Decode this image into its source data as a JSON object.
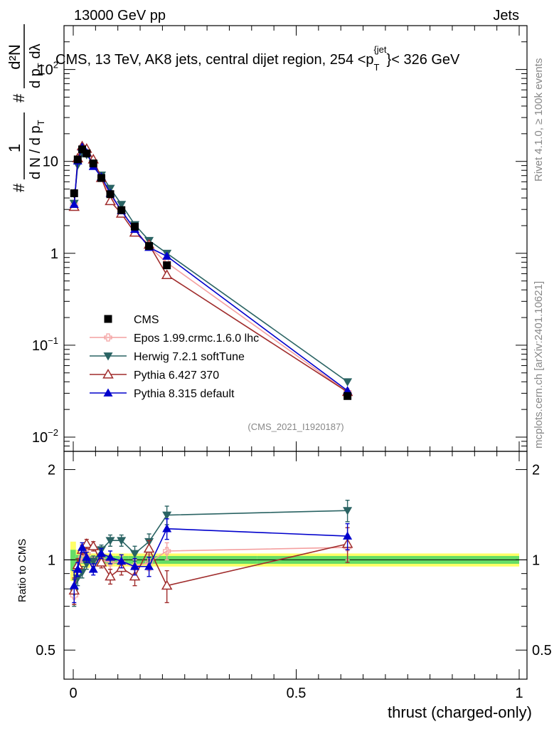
{
  "header": {
    "left": "13000 GeV pp",
    "right": "Jets"
  },
  "side_labels": {
    "rivet": "Rivet 4.1.0, ≥ 100k events",
    "mcplots": "mcplots.cern.ch [arXiv:2401.10621]"
  },
  "chart_data": {
    "type": "line",
    "title": "CMS, 13 TeV, AK8 jets, central dijet region, 254 <p_T^{jet}< 326 GeV",
    "title_parts": {
      "pre": "CMS, 13 TeV, AK8 jets, central dijet region, 254 <p",
      "sub": "T",
      "sup": "{jet",
      "post": "}< 326 GeV"
    },
    "analysis_id": "(CMS_2021_I1920187)",
    "xlabel": "thrust (charged-only)",
    "ylabel_main": {
      "frac_num": "1",
      "frac_den": "d N / d p",
      "frac_den_sub": "T",
      "frac_prefix": "#",
      "d2n_num": "d²N",
      "d2n_den": "d p",
      "d2n_den_sub": "T",
      "d2n_den_post": " dλ",
      "d2n_prefix": "#"
    },
    "ylabel_ratio": "Ratio to CMS",
    "xlim": [
      0,
      1
    ],
    "ylim_main": [
      0.007,
      300
    ],
    "ylim_ratio": [
      0.4,
      2.3
    ],
    "x_ticks": [
      {
        "value": 0,
        "label": "0"
      },
      {
        "value": 0.5,
        "label": "0.5"
      },
      {
        "value": 1,
        "label": "1"
      }
    ],
    "y_ticks_main": [
      {
        "value": 0.01,
        "base": "10",
        "exp": "−2"
      },
      {
        "value": 0.1,
        "base": "10",
        "exp": "−1"
      },
      {
        "value": 1,
        "base": "1",
        "exp": ""
      },
      {
        "value": 10,
        "base": "10",
        "exp": ""
      },
      {
        "value": 100,
        "base": "10",
        "exp": "2"
      }
    ],
    "y_ticks_ratio": [
      {
        "value": 0.5,
        "label": "0.5"
      },
      {
        "value": 1,
        "label": "1"
      },
      {
        "value": 2,
        "label": "2"
      }
    ],
    "x": [
      0.002,
      0.01,
      0.02,
      0.03,
      0.045,
      0.063,
      0.083,
      0.108,
      0.138,
      0.17,
      0.21,
      0.615
    ],
    "series": [
      {
        "name": "CMS",
        "color": "#000000",
        "marker": "square",
        "line": false,
        "values": [
          4.5,
          10.5,
          13.5,
          12.2,
          9.5,
          6.6,
          4.4,
          2.95,
          1.95,
          1.2,
          0.74,
          0.028
        ],
        "ratio": [
          1,
          1,
          1,
          1,
          1,
          1,
          1,
          1,
          1,
          1,
          1,
          1
        ],
        "ratio_err": [
          0,
          0,
          0,
          0,
          0,
          0,
          0,
          0,
          0,
          0,
          0,
          0
        ]
      },
      {
        "name": "Epos 1.99.crmc.1.6.0 lhc",
        "color": "#f4a0a0",
        "marker": "cross-open",
        "line": true,
        "values": [
          3.4,
          9.8,
          13.8,
          12.8,
          9.3,
          6.6,
          4.3,
          2.9,
          1.85,
          1.18,
          0.79,
          0.031
        ],
        "ratio": [
          0.76,
          0.93,
          1.02,
          1.05,
          0.98,
          1.0,
          0.98,
          0.98,
          0.95,
          0.98,
          1.07,
          1.1
        ],
        "ratio_err": [
          0.05,
          0.05,
          0.04,
          0.04,
          0.04,
          0.04,
          0.05,
          0.05,
          0.05,
          0.06,
          0.07,
          0.1
        ]
      },
      {
        "name": "Herwig 7.2.1 softTune",
        "color": "#2a6363",
        "marker": "triangle-down",
        "line": true,
        "values": [
          3.5,
          9.1,
          12.3,
          11.8,
          9.4,
          7.1,
          5.1,
          3.4,
          2.05,
          1.38,
          1.0,
          0.04
        ],
        "ratio": [
          0.78,
          0.87,
          0.91,
          0.97,
          0.99,
          1.08,
          1.16,
          1.16,
          1.05,
          1.15,
          1.41,
          1.46
        ],
        "ratio_err": [
          0.08,
          0.05,
          0.04,
          0.04,
          0.04,
          0.04,
          0.05,
          0.05,
          0.06,
          0.07,
          0.1,
          0.12
        ]
      },
      {
        "name": "Pythia 6.427 370",
        "color": "#a02c2c",
        "marker": "triangle-up-open",
        "line": true,
        "values": [
          3.2,
          10.8,
          14.6,
          13.7,
          10.5,
          6.6,
          3.7,
          2.7,
          1.68,
          1.24,
          0.58,
          0.031
        ],
        "ratio": [
          0.79,
          0.96,
          1.08,
          1.13,
          1.11,
          0.98,
          0.88,
          0.94,
          0.88,
          1.09,
          0.82,
          1.13
        ],
        "ratio_err": [
          0.08,
          0.05,
          0.04,
          0.04,
          0.04,
          0.04,
          0.05,
          0.05,
          0.06,
          0.07,
          0.1,
          0.15
        ]
      },
      {
        "name": "Pythia 8.315 default",
        "color": "#0000cc",
        "marker": "triangle-up",
        "line": true,
        "values": [
          3.4,
          10.1,
          14.3,
          12.5,
          8.8,
          6.8,
          4.5,
          2.9,
          1.82,
          1.16,
          0.93,
          0.032
        ],
        "ratio": [
          0.82,
          0.93,
          1.1,
          1.02,
          0.93,
          1.05,
          1.02,
          0.99,
          0.95,
          0.95,
          1.27,
          1.2
        ],
        "ratio_err": [
          0.1,
          0.05,
          0.04,
          0.04,
          0.04,
          0.04,
          0.05,
          0.05,
          0.06,
          0.07,
          0.1,
          0.12
        ]
      }
    ],
    "cms_err_main": [
      0.5,
      0.6,
      0.6,
      0.5,
      0.4,
      0.3,
      0.2,
      0.15,
      0.1,
      0.07,
      0.06,
      0.002
    ],
    "uncertainty_band": {
      "inner_color": "#66dd66",
      "outer_color": "#ffff66",
      "inner_halfwidth": [
        0.08,
        0.04,
        0.03,
        0.03,
        0.03,
        0.03,
        0.03,
        0.03,
        0.03,
        0.03,
        0.03,
        0.03
      ],
      "outer_halfwidth": [
        0.15,
        0.08,
        0.06,
        0.06,
        0.05,
        0.05,
        0.05,
        0.05,
        0.05,
        0.05,
        0.05,
        0.05
      ]
    },
    "legend_position": "lower-left"
  }
}
